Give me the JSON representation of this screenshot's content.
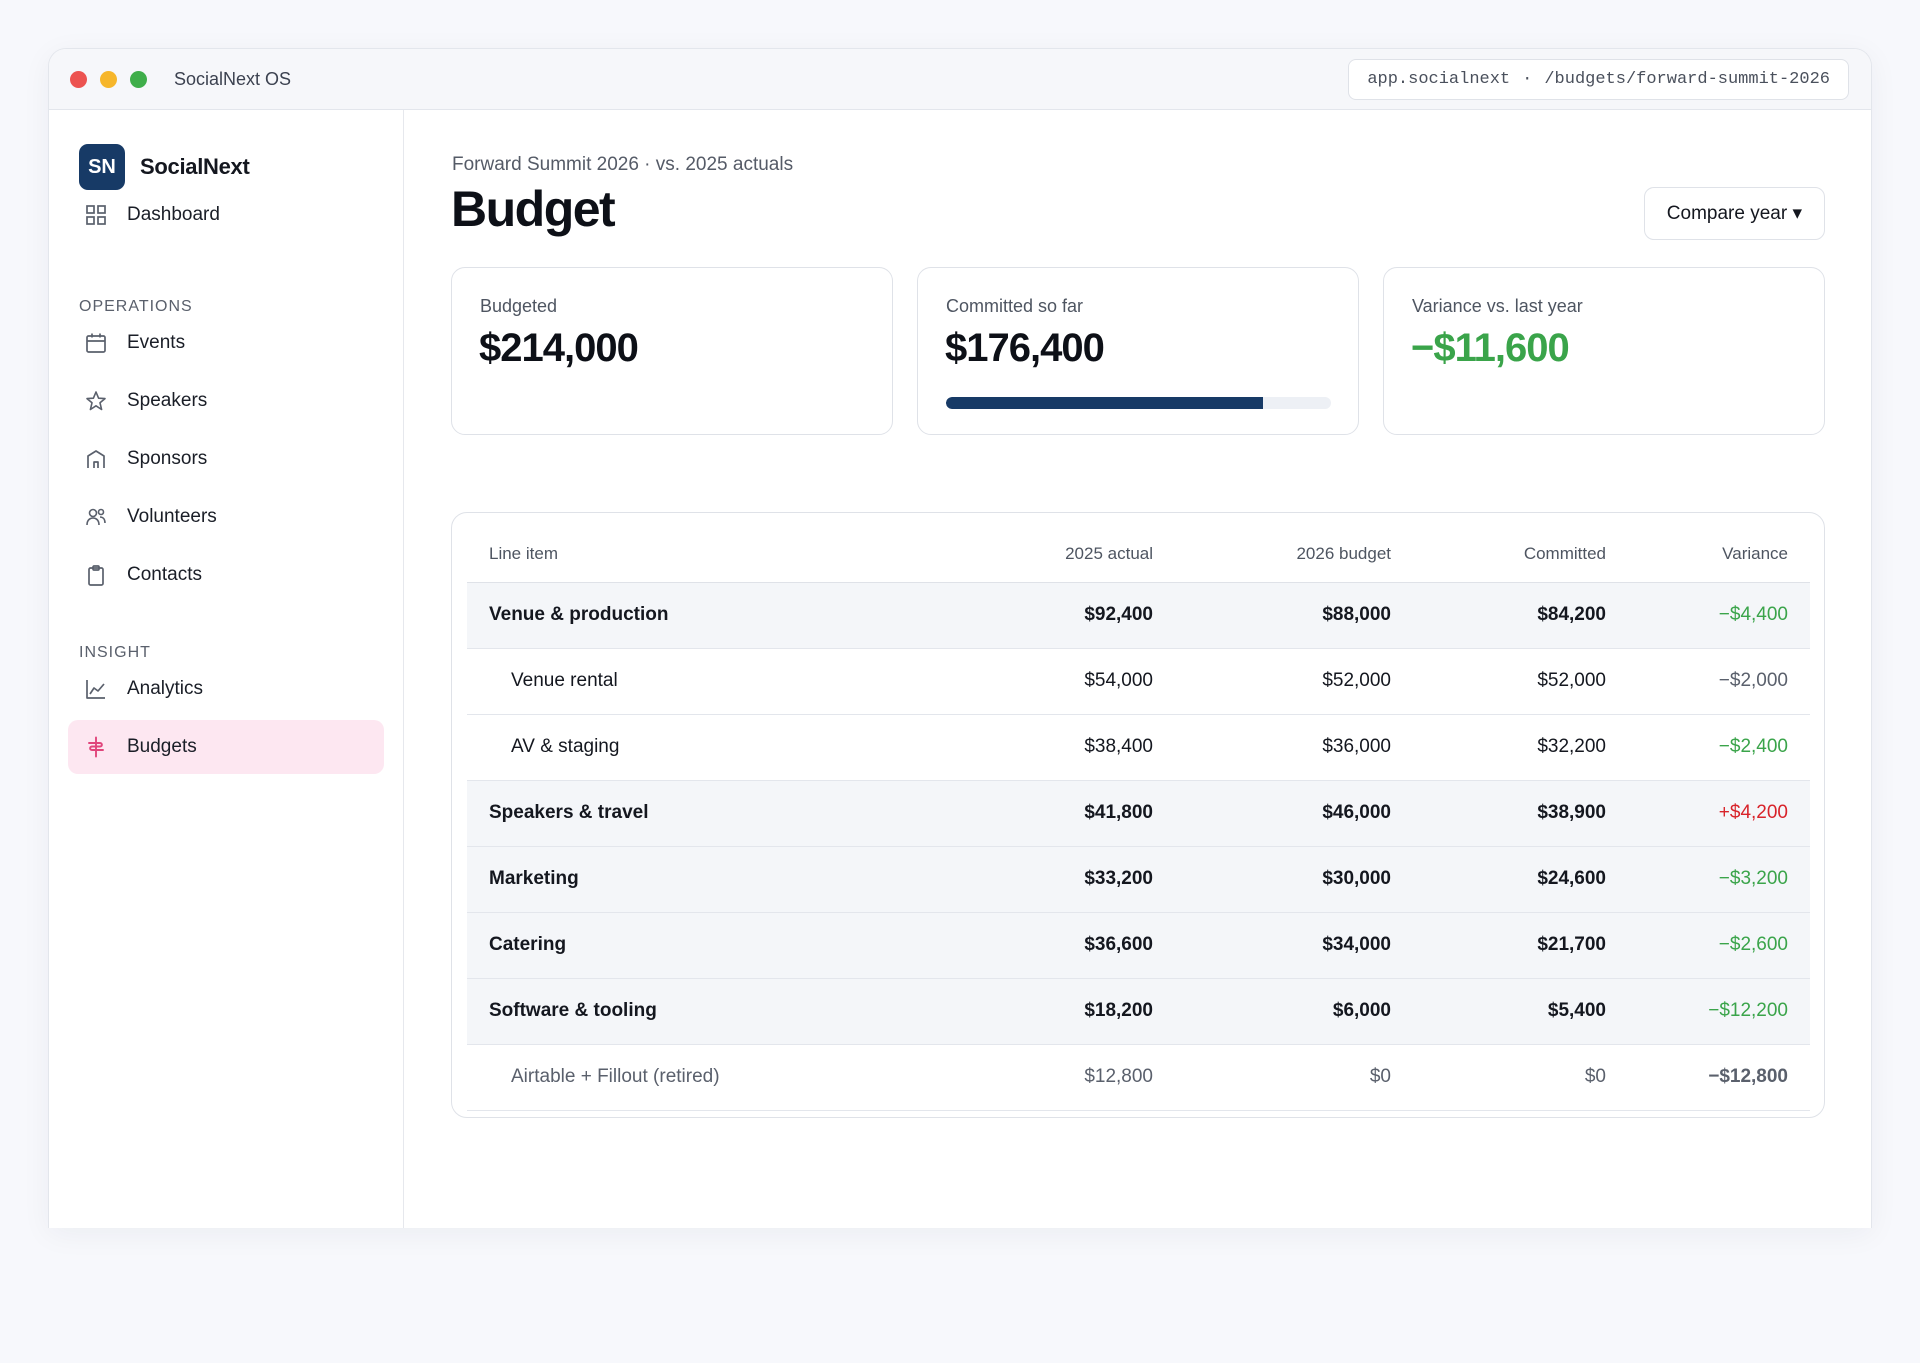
{
  "window": {
    "app_name": "SocialNext OS",
    "address_host": "app.socialnext",
    "address_sep": "·",
    "address_path": "/budgets/forward-summit-2026"
  },
  "sidebar": {
    "brand_mark": "SN",
    "brand_name": "SocialNext",
    "dashboard": "Dashboard",
    "section_operations": "OPERATIONS",
    "operations": [
      "Events",
      "Speakers",
      "Sponsors",
      "Volunteers",
      "Contacts"
    ],
    "section_insight": "INSIGHT",
    "insight": [
      "Analytics",
      "Budgets"
    ],
    "active_item": "Budgets"
  },
  "header": {
    "breadcrumb": "Forward Summit 2026 · vs. 2025 actuals",
    "title": "Budget",
    "compare_button": "Compare year ▾"
  },
  "kpis": {
    "budgeted": {
      "label": "Budgeted",
      "value": "$214,000"
    },
    "committed": {
      "label": "Committed so far",
      "value": "$176,400",
      "progress_fraction": 0.824
    },
    "variance": {
      "label": "Variance vs. last year",
      "value": "−$11,600"
    }
  },
  "table": {
    "columns": [
      "Line item",
      "2025 actual",
      "2026 budget",
      "Committed",
      "Variance"
    ],
    "rows": [
      {
        "item": "Venue & production",
        "a2025": "$92,400",
        "b2026": "$88,000",
        "committed": "$84,200",
        "variance": "−$4,400"
      },
      {
        "item": "Venue rental",
        "a2025": "$54,000",
        "b2026": "$52,000",
        "committed": "$52,000",
        "variance": "−$2,000"
      },
      {
        "item": "AV & staging",
        "a2025": "$38,400",
        "b2026": "$36,000",
        "committed": "$32,200",
        "variance": "−$2,400"
      },
      {
        "item": "Speakers & travel",
        "a2025": "$41,800",
        "b2026": "$46,000",
        "committed": "$38,900",
        "variance": "+$4,200"
      },
      {
        "item": "Marketing",
        "a2025": "$33,200",
        "b2026": "$30,000",
        "committed": "$24,600",
        "variance": "−$3,200"
      },
      {
        "item": "Catering",
        "a2025": "$36,600",
        "b2026": "$34,000",
        "committed": "$21,700",
        "variance": "−$2,600"
      },
      {
        "item": "Software & tooling",
        "a2025": "$18,200",
        "b2026": "$6,000",
        "committed": "$5,400",
        "variance": "−$12,200"
      },
      {
        "item": "Airtable + Fillout (retired)",
        "a2025": "$12,800",
        "b2026": "$0",
        "committed": "$0",
        "variance": "−$12,800"
      }
    ]
  },
  "colors": {
    "brand_navy": "#173a66",
    "positive_green": "#3aa44a",
    "negative_red": "#d8232a",
    "active_nav_bg": "#fde7f1",
    "active_nav_icon": "#e0457b"
  }
}
